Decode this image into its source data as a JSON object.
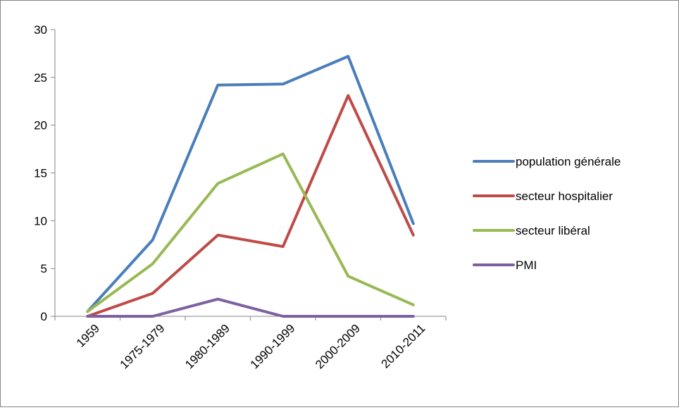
{
  "chart_data": {
    "type": "line",
    "title": "",
    "xlabel": "",
    "ylabel": "",
    "categories": [
      "1959",
      "1975-1979",
      "1980-1989",
      "1990-1999",
      "2000-2009",
      "2010-2011"
    ],
    "ylim": [
      0,
      30
    ],
    "yticks": [
      "0",
      "5",
      "10",
      "15",
      "20",
      "25",
      "30"
    ],
    "grid": false,
    "legend_position": "right",
    "series": [
      {
        "name": "population générale",
        "color": "#4A7EBB",
        "values": [
          0.5,
          8.0,
          24.2,
          24.3,
          27.2,
          9.7
        ]
      },
      {
        "name": "secteur hospitalier",
        "color": "#BE4B48",
        "values": [
          0.0,
          2.4,
          8.5,
          7.3,
          23.1,
          8.5
        ]
      },
      {
        "name": "secteur libéral",
        "color": "#98B954",
        "values": [
          0.5,
          5.5,
          13.9,
          17.0,
          4.2,
          1.2
        ]
      },
      {
        "name": "PMI",
        "color": "#7D60A0",
        "values": [
          0.0,
          0.0,
          1.8,
          0.0,
          0.0,
          0.0
        ]
      }
    ]
  }
}
